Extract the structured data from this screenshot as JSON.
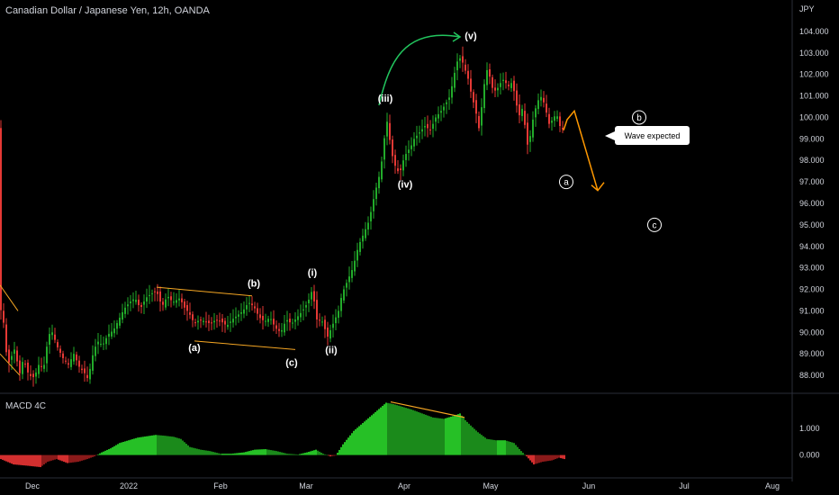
{
  "header": {
    "title": "Canadian Dollar / Japanese Yen, 12h, OANDA"
  },
  "indicator": {
    "label": "MACD 4C"
  },
  "callout": {
    "text": "Wave expected"
  },
  "colors": {
    "background": "#000000",
    "up": "#22ab2a",
    "down": "#e53935",
    "trendline": "#f5a623",
    "projection": "#ff9800",
    "arc": "#22c55e",
    "text": "#d1d4dc"
  },
  "chart_data": [
    {
      "type": "candlestick",
      "title": "Canadian Dollar / Japanese Yen, 12h, OANDA",
      "ylabel": "JPY",
      "ylim": [
        87.5,
        104.5
      ],
      "y_ticks": [
        "104.000",
        "103.000",
        "102.000",
        "101.000",
        "100.000",
        "99.000",
        "98.000",
        "97.000",
        "96.000",
        "95.000",
        "94.000",
        "93.000",
        "92.000",
        "91.000",
        "90.000",
        "89.000",
        "88.000"
      ],
      "x_ticks": [
        "Dec",
        "2022",
        "Feb",
        "Mar",
        "Apr",
        "May",
        "Jun",
        "Jul",
        "Aug"
      ],
      "price_path": [
        [
          0,
          90.8
        ],
        [
          3,
          91.5
        ],
        [
          5,
          89.4
        ],
        [
          10,
          88.6
        ],
        [
          16,
          89.2
        ],
        [
          22,
          88.1
        ],
        [
          26,
          88.8
        ],
        [
          32,
          88.0
        ],
        [
          38,
          87.9
        ],
        [
          44,
          88.6
        ],
        [
          48,
          88.2
        ],
        [
          54,
          89.9
        ],
        [
          58,
          90.0
        ],
        [
          64,
          89.3
        ],
        [
          70,
          88.8
        ],
        [
          76,
          88.5
        ],
        [
          82,
          89.0
        ],
        [
          88,
          88.4
        ],
        [
          94,
          88.1
        ],
        [
          98,
          87.8
        ],
        [
          102,
          88.8
        ],
        [
          108,
          89.6
        ],
        [
          114,
          89.4
        ],
        [
          120,
          89.9
        ],
        [
          126,
          90.1
        ],
        [
          132,
          90.6
        ],
        [
          138,
          91.1
        ],
        [
          144,
          91.4
        ],
        [
          150,
          91.6
        ],
        [
          156,
          91.1
        ],
        [
          162,
          91.6
        ],
        [
          168,
          91.8
        ],
        [
          174,
          91.9
        ],
        [
          180,
          91.2
        ],
        [
          186,
          91.7
        ],
        [
          192,
          91.4
        ],
        [
          196,
          91.5
        ],
        [
          200,
          91.6
        ],
        [
          204,
          91.2
        ],
        [
          210,
          90.9
        ],
        [
          216,
          90.4
        ],
        [
          222,
          90.6
        ],
        [
          228,
          90.5
        ],
        [
          234,
          90.4
        ],
        [
          240,
          90.6
        ],
        [
          246,
          90.5
        ],
        [
          252,
          90.3
        ],
        [
          258,
          90.6
        ],
        [
          264,
          90.8
        ],
        [
          270,
          91.0
        ],
        [
          276,
          91.4
        ],
        [
          282,
          91.2
        ],
        [
          288,
          90.7
        ],
        [
          294,
          90.5
        ],
        [
          300,
          90.7
        ],
        [
          306,
          90.2
        ],
        [
          312,
          90.0
        ],
        [
          318,
          90.6
        ],
        [
          324,
          90.4
        ],
        [
          330,
          90.7
        ],
        [
          336,
          91.0
        ],
        [
          342,
          91.4
        ],
        [
          347,
          92.0
        ],
        [
          352,
          90.6
        ],
        [
          358,
          90.5
        ],
        [
          364,
          89.8
        ],
        [
          370,
          90.4
        ],
        [
          376,
          91.0
        ],
        [
          380,
          91.8
        ],
        [
          386,
          92.4
        ],
        [
          392,
          93.0
        ],
        [
          398,
          94.0
        ],
        [
          404,
          94.6
        ],
        [
          410,
          95.2
        ],
        [
          416,
          96.4
        ],
        [
          422,
          97.4
        ],
        [
          426,
          98.5
        ],
        [
          429,
          100.1
        ],
        [
          432,
          99.2
        ],
        [
          436,
          98.2
        ],
        [
          440,
          97.6
        ],
        [
          444,
          97.4
        ],
        [
          448,
          98.0
        ],
        [
          452,
          98.4
        ],
        [
          456,
          98.6
        ],
        [
          460,
          99.0
        ],
        [
          466,
          99.3
        ],
        [
          472,
          99.6
        ],
        [
          478,
          99.4
        ],
        [
          484,
          100.0
        ],
        [
          490,
          100.3
        ],
        [
          496,
          100.7
        ],
        [
          500,
          101.0
        ],
        [
          504,
          101.9
        ],
        [
          508,
          102.6
        ],
        [
          512,
          102.8
        ],
        [
          516,
          102.3
        ],
        [
          520,
          101.8
        ],
        [
          524,
          101.0
        ],
        [
          528,
          100.4
        ],
        [
          532,
          99.5
        ],
        [
          536,
          100.8
        ],
        [
          540,
          102.3
        ],
        [
          544,
          101.9
        ],
        [
          548,
          101.2
        ],
        [
          552,
          101.3
        ],
        [
          556,
          101.6
        ],
        [
          560,
          101.8
        ],
        [
          564,
          101.4
        ],
        [
          568,
          101.6
        ],
        [
          572,
          101.1
        ],
        [
          576,
          100.0
        ],
        [
          580,
          100.4
        ],
        [
          584,
          99.4
        ],
        [
          587,
          98.4
        ],
        [
          590,
          99.5
        ],
        [
          594,
          100.3
        ],
        [
          598,
          100.8
        ],
        [
          602,
          101.0
        ],
        [
          606,
          100.4
        ],
        [
          610,
          99.7
        ],
        [
          614,
          99.9
        ],
        [
          618,
          100.2
        ],
        [
          622,
          99.6
        ],
        [
          626,
          99.4
        ]
      ],
      "projection": [
        [
          626,
          99.4
        ],
        [
          630,
          99.9
        ],
        [
          638,
          100.3
        ],
        [
          664,
          96.6
        ]
      ],
      "wave_labels": [
        {
          "label": "(a)",
          "x": 216,
          "y": 89.3
        },
        {
          "label": "(b)",
          "x": 282,
          "y": 92.3
        },
        {
          "label": "(c)",
          "x": 324,
          "y": 88.6
        },
        {
          "label": "(i)",
          "x": 347,
          "y": 92.8
        },
        {
          "label": "(ii)",
          "x": 368,
          "y": 89.2
        },
        {
          "label": "(iii)",
          "x": 428,
          "y": 100.9
        },
        {
          "label": "(iv)",
          "x": 450,
          "y": 96.9
        },
        {
          "label": "(v)",
          "x": 523,
          "y": 103.8
        }
      ],
      "projection_labels": [
        {
          "label": "b",
          "x": 710,
          "y": 100.0
        },
        {
          "label": "a",
          "x": 629,
          "y": 97.0
        },
        {
          "label": "c",
          "x": 727,
          "y": 95.0
        }
      ],
      "trendlines": [
        [
          [
            0,
            92.2
          ],
          [
            20,
            91.0
          ]
        ],
        [
          [
            0,
            89.0
          ],
          [
            22,
            88.0
          ]
        ],
        [
          [
            174,
            92.1
          ],
          [
            280,
            91.7
          ]
        ],
        [
          [
            216,
            89.6
          ],
          [
            328,
            89.2
          ]
        ]
      ]
    },
    {
      "type": "bar",
      "title": "MACD 4C",
      "ylim": [
        -0.55,
        2.2
      ],
      "y_ticks": [
        "1.000",
        "0.000"
      ],
      "histogram_path": [
        [
          0,
          -0.15
        ],
        [
          14,
          -0.35
        ],
        [
          30,
          -0.4
        ],
        [
          44,
          -0.45
        ],
        [
          52,
          -0.25
        ],
        [
          62,
          -0.15
        ],
        [
          74,
          -0.3
        ],
        [
          86,
          -0.25
        ],
        [
          96,
          -0.15
        ],
        [
          104,
          -0.05
        ],
        [
          112,
          0.1
        ],
        [
          122,
          0.25
        ],
        [
          132,
          0.45
        ],
        [
          142,
          0.55
        ],
        [
          152,
          0.65
        ],
        [
          162,
          0.7
        ],
        [
          172,
          0.75
        ],
        [
          182,
          0.72
        ],
        [
          192,
          0.68
        ],
        [
          200,
          0.6
        ],
        [
          210,
          0.3
        ],
        [
          222,
          0.2
        ],
        [
          232,
          0.15
        ],
        [
          244,
          0.05
        ],
        [
          256,
          0.05
        ],
        [
          270,
          0.1
        ],
        [
          282,
          0.2
        ],
        [
          294,
          0.22
        ],
        [
          306,
          0.15
        ],
        [
          318,
          0.05
        ],
        [
          330,
          0.02
        ],
        [
          340,
          0.1
        ],
        [
          350,
          0.2
        ],
        [
          358,
          0.05
        ],
        [
          366,
          -0.05
        ],
        [
          372,
          -0.02
        ],
        [
          380,
          0.4
        ],
        [
          392,
          0.9
        ],
        [
          404,
          1.25
        ],
        [
          416,
          1.6
        ],
        [
          428,
          1.95
        ],
        [
          436,
          1.9
        ],
        [
          446,
          1.8
        ],
        [
          456,
          1.7
        ],
        [
          468,
          1.55
        ],
        [
          480,
          1.4
        ],
        [
          492,
          1.35
        ],
        [
          502,
          1.45
        ],
        [
          510,
          1.55
        ],
        [
          516,
          1.3
        ],
        [
          522,
          1.1
        ],
        [
          530,
          0.85
        ],
        [
          540,
          0.6
        ],
        [
          550,
          0.55
        ],
        [
          560,
          0.55
        ],
        [
          570,
          0.45
        ],
        [
          578,
          0.15
        ],
        [
          584,
          -0.05
        ],
        [
          592,
          -0.35
        ],
        [
          602,
          -0.25
        ],
        [
          612,
          -0.2
        ],
        [
          620,
          -0.1
        ],
        [
          626,
          -0.15
        ]
      ],
      "divergence_line": [
        [
          434,
          1.98
        ],
        [
          516,
          1.4
        ]
      ]
    }
  ]
}
